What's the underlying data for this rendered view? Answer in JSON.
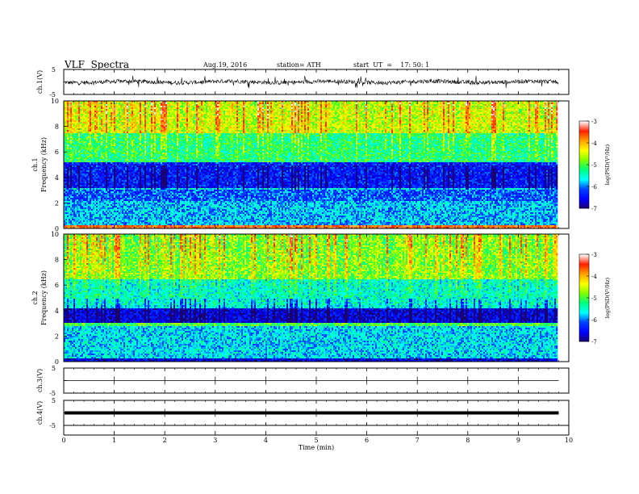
{
  "header": {
    "title": "VLF  Spectra",
    "date": "Aug.19, 2016",
    "station": "station= ATH",
    "start": "start  UT  =    17: 50: 1"
  },
  "colors": {
    "background": "#ffffff",
    "axis": "#000000",
    "trace": "#000000",
    "colormap": [
      "#1a006e",
      "#0000ff",
      "#0040ff",
      "#00ffff",
      "#00ff80",
      "#80ff00",
      "#ffff00",
      "#ffa000",
      "#ff2000",
      "#ffffff"
    ]
  },
  "chart_data": [
    {
      "type": "line",
      "panel": "ch1",
      "ylabel": "ch.1(V)",
      "ylim": [
        -5,
        5
      ],
      "yticks": [
        "5",
        "-5"
      ],
      "xlim": [
        0,
        10
      ],
      "description_values": "time-domain waveform, amplitude mostly within ±1 V with occasional spikes",
      "series": [
        {
          "x": [
            0,
            9.8
          ],
          "y_range": [
            -1.5,
            1.5
          ]
        }
      ]
    },
    {
      "type": "heatmap",
      "panel": "ch1-spectrogram",
      "ylabel_channel": "ch.1",
      "ylabel": "Frequency  (kHz)",
      "ylim": [
        0,
        10
      ],
      "yticks": [
        "0",
        "2",
        "4",
        "6",
        "8",
        "10"
      ],
      "xlim": [
        0,
        9.8
      ],
      "colorbar": {
        "label": "log(PSD(V²/Hz)",
        "range": [
          -7,
          -3
        ],
        "ticks": [
          "-3",
          "-4",
          "-5",
          "-6",
          "-7"
        ]
      },
      "bands": [
        {
          "f_range": [
            0,
            0.3
          ],
          "level": -3.6
        },
        {
          "f_range": [
            0.3,
            2.2
          ],
          "level": -5.8
        },
        {
          "f_range": [
            2.2,
            3.0
          ],
          "level": -6.1
        },
        {
          "f_range": [
            3.0,
            3.2
          ],
          "level": -5.6
        },
        {
          "f_range": [
            3.2,
            5.2
          ],
          "level": -6.4
        },
        {
          "f_range": [
            5.2,
            7.5
          ],
          "level": -5.2
        },
        {
          "f_range": [
            7.5,
            10
          ],
          "level": -4.5
        }
      ]
    },
    {
      "type": "heatmap",
      "panel": "ch2-spectrogram",
      "ylabel_channel": "ch.2",
      "ylabel": "Frequency  (kHz)",
      "ylim": [
        0,
        10
      ],
      "yticks": [
        "0",
        "2",
        "4",
        "6",
        "8",
        "10"
      ],
      "xlim": [
        0,
        9.8
      ],
      "colorbar": {
        "label": "log(PSD(V²/Hz)",
        "range": [
          -7,
          -3
        ],
        "ticks": [
          "-3",
          "-4",
          "-5",
          "-6",
          "-7"
        ]
      },
      "bands": [
        {
          "f_range": [
            0,
            0.3
          ],
          "level": -6.6
        },
        {
          "f_range": [
            0.3,
            2.8
          ],
          "level": -5.7
        },
        {
          "f_range": [
            2.8,
            3.0
          ],
          "level": -5.0
        },
        {
          "f_range": [
            3.0,
            4.2
          ],
          "level": -6.6
        },
        {
          "f_range": [
            4.2,
            4.4
          ],
          "level": -5.6
        },
        {
          "f_range": [
            4.4,
            6.5
          ],
          "level": -5.5
        },
        {
          "f_range": [
            6.5,
            10
          ],
          "level": -4.8
        }
      ]
    },
    {
      "type": "line",
      "panel": "ch3",
      "ylabel": "ch.3(V)",
      "ylim": [
        -5,
        5
      ],
      "yticks": [
        "5",
        "-5"
      ],
      "xlim": [
        0,
        10
      ],
      "series": [
        {
          "x": [
            0,
            9.8
          ],
          "y": [
            0,
            0
          ]
        }
      ]
    },
    {
      "type": "line",
      "panel": "ch4",
      "ylabel": "ch.4(V)",
      "ylim": [
        -5,
        5
      ],
      "yticks": [
        "5",
        "-5"
      ],
      "xlim": [
        0,
        10
      ],
      "series": [
        {
          "x": [
            0,
            9.8
          ],
          "y": [
            0,
            0
          ]
        }
      ]
    }
  ],
  "xaxis": {
    "label": "Time  (min)",
    "ticks": [
      "0",
      "1",
      "2",
      "3",
      "4",
      "5",
      "6",
      "7",
      "8",
      "9",
      "10"
    ],
    "range": [
      0,
      10
    ]
  }
}
